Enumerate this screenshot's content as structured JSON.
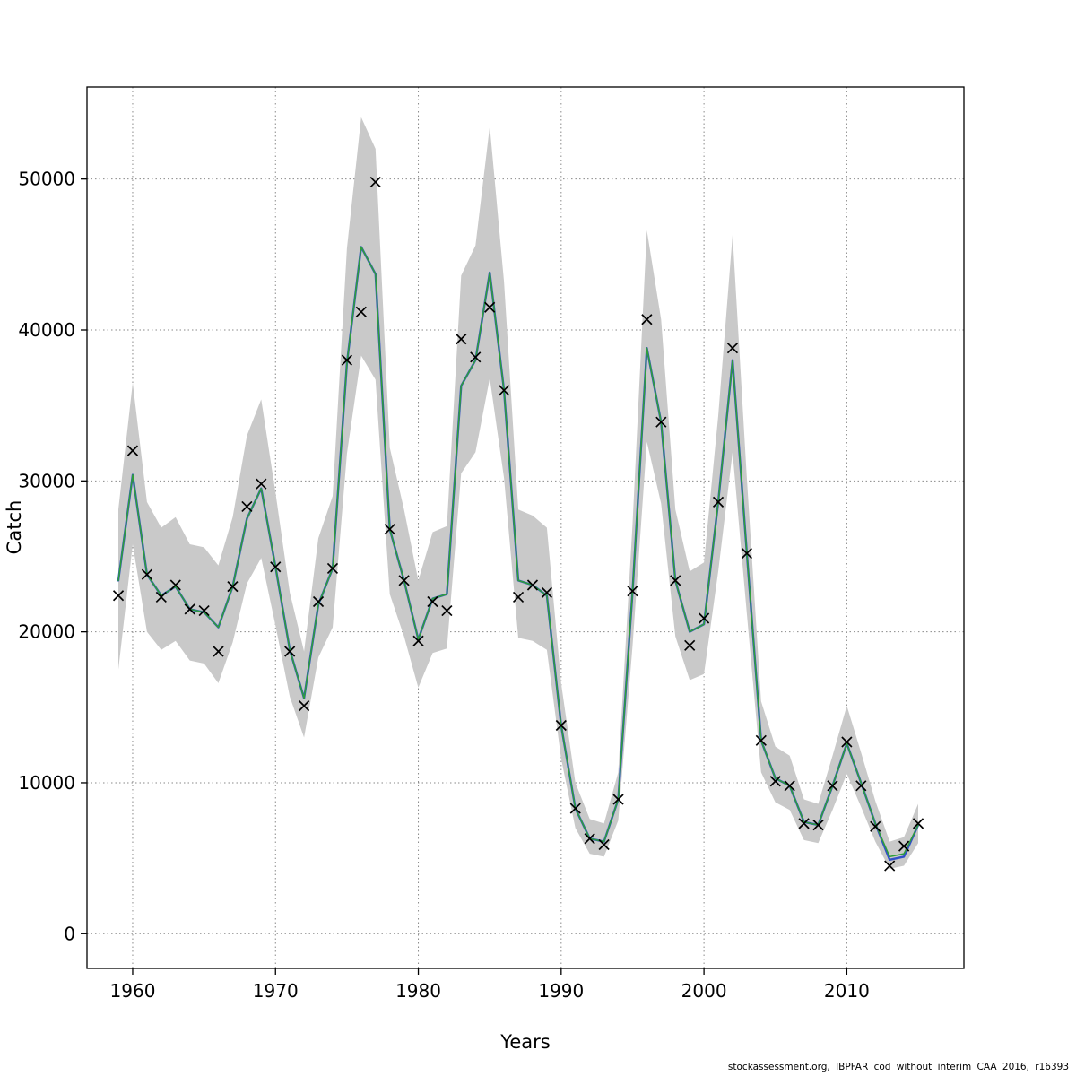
{
  "chart_data": {
    "type": "line",
    "title": "",
    "xlabel": "Years",
    "ylabel": "Catch",
    "caption": "stockassessment.org, IBPFAR cod without interim CAA 2016, r16393",
    "x_range": [
      1956.8,
      2018.2
    ],
    "y_range": [
      -2300,
      56100
    ],
    "x_ticks": [
      1960,
      1970,
      1980,
      1990,
      2000,
      2010
    ],
    "y_ticks": [
      0,
      10000,
      20000,
      30000,
      40000,
      50000
    ],
    "grid": "dotted",
    "grid_color": "#8a8a8a",
    "observed_marker": "x",
    "marker_color": "#000000",
    "years": [
      1959,
      1960,
      1961,
      1962,
      1963,
      1964,
      1965,
      1966,
      1967,
      1968,
      1969,
      1970,
      1971,
      1972,
      1973,
      1974,
      1975,
      1976,
      1977,
      1978,
      1979,
      1980,
      1981,
      1982,
      1983,
      1984,
      1985,
      1986,
      1987,
      1988,
      1989,
      1990,
      1991,
      1992,
      1993,
      1994,
      1995,
      1996,
      1997,
      1998,
      1999,
      2000,
      2001,
      2002,
      2003,
      2004,
      2005,
      2006,
      2007,
      2008,
      2009,
      2010,
      2011,
      2012,
      2013,
      2014,
      2015
    ],
    "observed": [
      22400,
      32000,
      23800,
      22300,
      23100,
      21500,
      21400,
      18700,
      23000,
      28300,
      29800,
      24300,
      18700,
      15100,
      22000,
      24200,
      38000,
      41200,
      49800,
      26800,
      23400,
      19400,
      22000,
      21400,
      39400,
      38200,
      41500,
      36000,
      22300,
      23100,
      22600,
      13800,
      8300,
      6300,
      5900,
      8900,
      22700,
      40700,
      33900,
      23400,
      19100,
      20900,
      28600,
      38800,
      25200,
      12800,
      10100,
      9800,
      7300,
      7200,
      9800,
      12700,
      9800,
      7100,
      4500,
      5800,
      7300
    ],
    "series": [
      {
        "name": "fit-blue",
        "color": "#3050c8",
        "width": 2.4,
        "values": [
          23400,
          30400,
          23800,
          22400,
          23000,
          21500,
          21300,
          20300,
          23000,
          27500,
          29500,
          24300,
          18800,
          15600,
          21800,
          24200,
          37800,
          45500,
          43700,
          26800,
          23400,
          19500,
          22200,
          22500,
          36300,
          38000,
          43800,
          36000,
          23400,
          23100,
          22400,
          13800,
          8300,
          6300,
          6100,
          8900,
          22700,
          38800,
          33900,
          23400,
          20000,
          20500,
          28600,
          38000,
          25200,
          12800,
          10300,
          9800,
          7400,
          7200,
          9800,
          12600,
          10000,
          7300,
          4900,
          5100,
          7200
        ]
      },
      {
        "name": "fit-green",
        "color": "#2e9e3a",
        "width": 1.5,
        "values": [
          23400,
          30400,
          23800,
          22400,
          23000,
          21500,
          21300,
          20300,
          23000,
          27500,
          29500,
          24300,
          18800,
          15600,
          21800,
          24200,
          37800,
          45500,
          43700,
          26800,
          23400,
          19500,
          22200,
          22500,
          36300,
          38000,
          43800,
          36000,
          23400,
          23100,
          22400,
          13800,
          8300,
          6300,
          6100,
          8900,
          22700,
          38800,
          33900,
          23400,
          20000,
          20500,
          28600,
          38000,
          25200,
          12800,
          10300,
          9800,
          7400,
          7200,
          9800,
          12600,
          10000,
          7300,
          5100,
          5300,
          7200
        ]
      }
    ],
    "band": {
      "color": "#c9c9c9",
      "lower": [
        17500,
        25800,
        20000,
        18800,
        19400,
        18100,
        17900,
        16600,
        19300,
        23200,
        24900,
        20400,
        15700,
        13000,
        18300,
        20300,
        31800,
        38300,
        36700,
        22500,
        19700,
        16300,
        18600,
        18900,
        30500,
        31900,
        36800,
        30200,
        19600,
        19400,
        18800,
        11600,
        7000,
        5300,
        5100,
        7500,
        19100,
        32600,
        28500,
        19700,
        16800,
        17200,
        24000,
        31900,
        21200,
        10700,
        8700,
        8200,
        6200,
        6000,
        8200,
        10600,
        8400,
        6100,
        4300,
        4500,
        6000
      ],
      "upper": [
        28100,
        36500,
        28600,
        26900,
        27600,
        25800,
        25600,
        24400,
        27600,
        33000,
        35400,
        29200,
        22600,
        18700,
        26200,
        29000,
        45400,
        54100,
        52000,
        32200,
        28100,
        23400,
        26600,
        27000,
        43600,
        45600,
        53500,
        43200,
        28100,
        27700,
        26900,
        16600,
        10000,
        7600,
        7300,
        10700,
        27200,
        46600,
        40700,
        28100,
        24000,
        24600,
        34300,
        46300,
        30200,
        15400,
        12400,
        11800,
        8900,
        8600,
        11800,
        15100,
        12000,
        8800,
        6100,
        6400,
        8600
      ]
    }
  }
}
